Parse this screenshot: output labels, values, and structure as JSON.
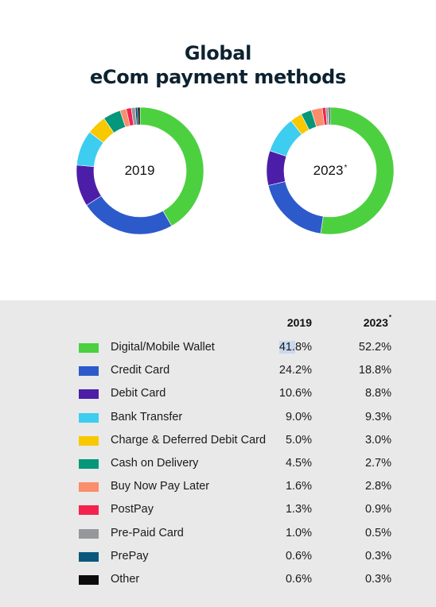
{
  "title_line1": "Global",
  "title_line2": "eCom payment methods",
  "columns": {
    "y2019": "2019",
    "y2023": "2023",
    "y2023_mark": "*"
  },
  "chart_data": {
    "type": "pie",
    "title": "Global eCom payment methods",
    "categories": [
      "Digital/Mobile Wallet",
      "Credit Card",
      "Debit Card",
      "Bank Transfer",
      "Charge & Deferred Debit Card",
      "Cash on Delivery",
      "Buy Now Pay Later",
      "PostPay",
      "Pre-Paid Card",
      "PrePay",
      "Other"
    ],
    "colors": [
      "#4cd040",
      "#2c5acb",
      "#4c1ea7",
      "#3ccdf0",
      "#f8c800",
      "#04977a",
      "#fa8d6c",
      "#f4224d",
      "#96979b",
      "#0b587c",
      "#0c0c0c"
    ],
    "series": [
      {
        "name": "2019",
        "center_label": "2019",
        "center_mark": "",
        "values": [
          41.8,
          24.2,
          10.6,
          9.0,
          5.0,
          4.5,
          1.6,
          1.3,
          1.0,
          0.6,
          0.6
        ],
        "labels": [
          "41.8%",
          "24.2%",
          "10.6%",
          "9.0%",
          "5.0%",
          "4.5%",
          "1.6%",
          "1.3%",
          "1.0%",
          "0.6%",
          "0.6%"
        ]
      },
      {
        "name": "2023",
        "center_label": "2023",
        "center_mark": "*",
        "values": [
          52.2,
          18.8,
          8.8,
          9.3,
          3.0,
          2.7,
          2.8,
          0.9,
          0.5,
          0.3,
          0.3
        ],
        "labels": [
          "52.2%",
          "18.8%",
          "8.8%",
          "9.3%",
          "3.0%",
          "2.7%",
          "2.8%",
          "0.9%",
          "0.5%",
          "0.3%",
          "0.3%"
        ]
      }
    ],
    "legend": "bottom"
  }
}
